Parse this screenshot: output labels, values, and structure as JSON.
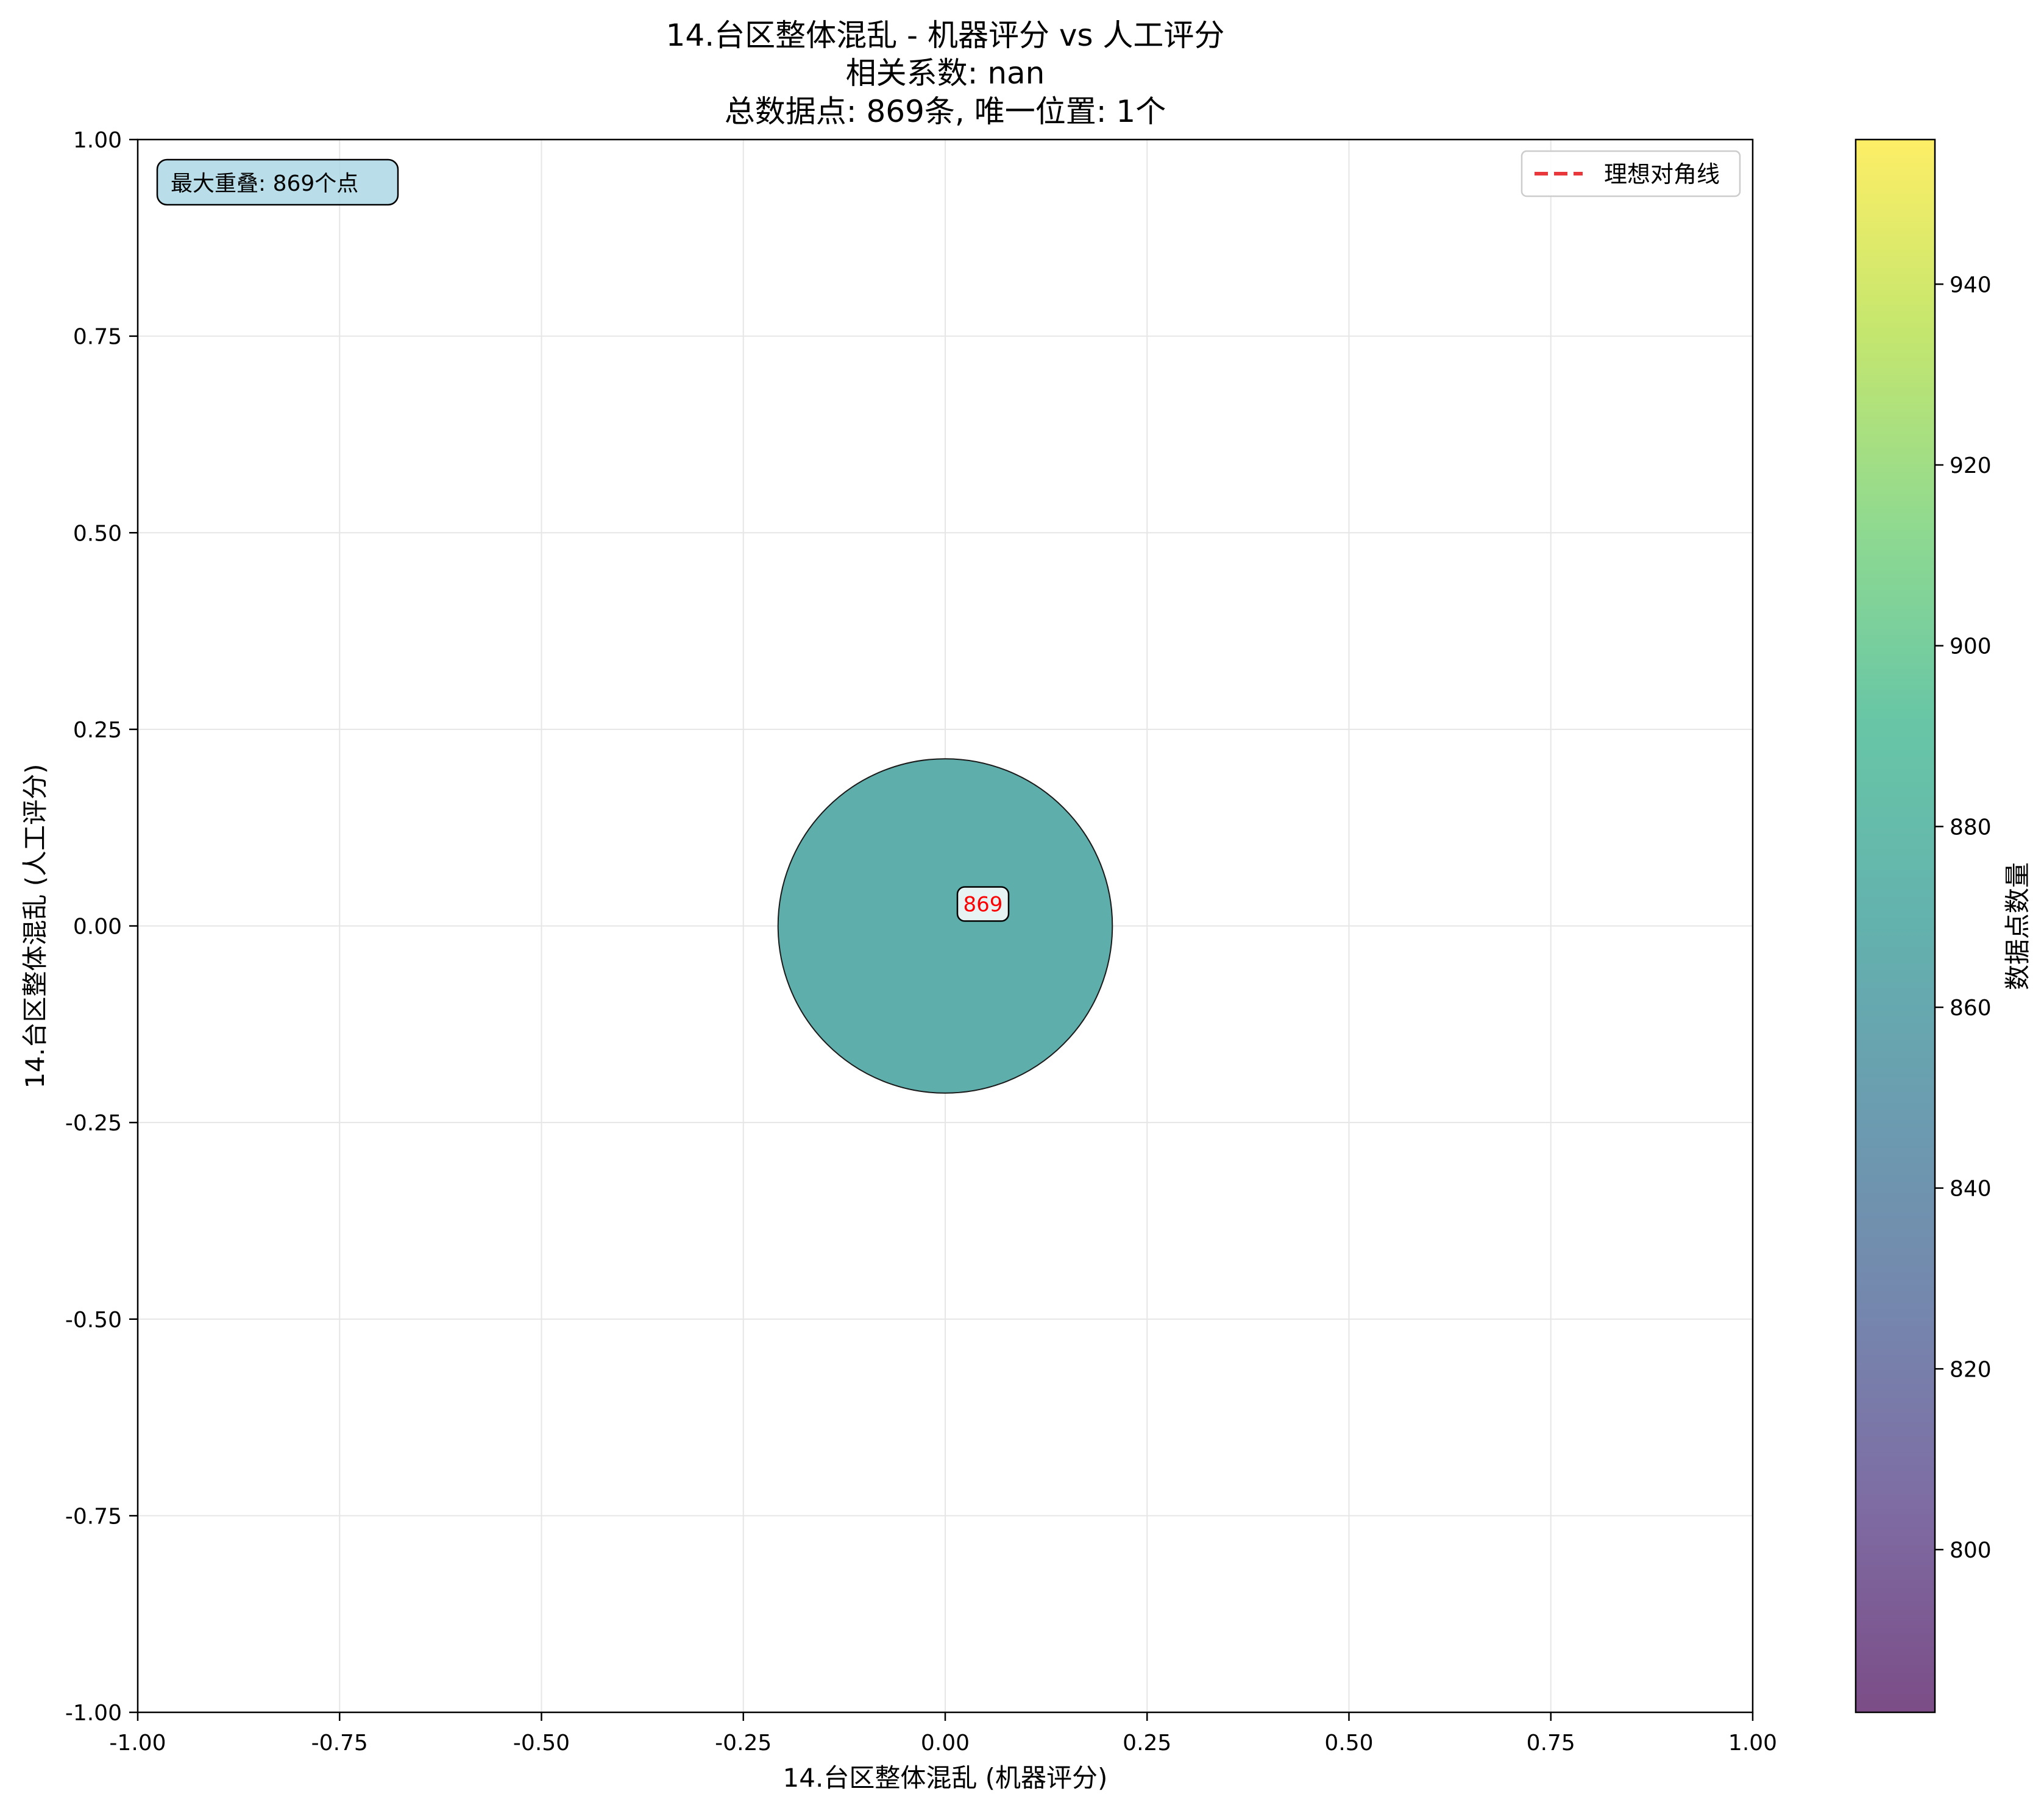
{
  "chart_data": {
    "type": "scatter",
    "title_lines": [
      "14.台区整体混乱 - 机器评分 vs 人工评分",
      "相关系数: nan",
      "总数据点: 869条, 唯一位置: 1个"
    ],
    "xlabel": "14.台区整体混乱 (机器评分)",
    "ylabel": "14.台区整体混乱 (人工评分)",
    "xlim": [
      -1.0,
      1.0
    ],
    "ylim": [
      -1.0,
      1.0
    ],
    "xticks": [
      "-1.00",
      "-0.75",
      "-0.50",
      "-0.25",
      "0.00",
      "0.25",
      "0.50",
      "0.75",
      "1.00"
    ],
    "yticks": [
      "1.00",
      "0.75",
      "0.50",
      "0.25",
      "0.00",
      "-0.25",
      "-0.50",
      "-0.75",
      "-1.00"
    ],
    "grid": true,
    "legend": {
      "placement": "upper-right",
      "entries": [
        {
          "label": "理想对角线",
          "style": "dashed",
          "color": "#e8383b"
        }
      ]
    },
    "annotation_box": {
      "placement": "upper-left",
      "text": "最大重叠: 869个点"
    },
    "points": [
      {
        "x": 0.0,
        "y": 0.0,
        "count": 869,
        "label": "869",
        "color": "#5eaeab"
      }
    ],
    "colorbar": {
      "label": "数据点数量",
      "colormap": "viridis",
      "range": [
        782,
        956
      ],
      "ticks": [
        "940",
        "920",
        "900",
        "880",
        "860",
        "840",
        "820",
        "800"
      ]
    }
  }
}
